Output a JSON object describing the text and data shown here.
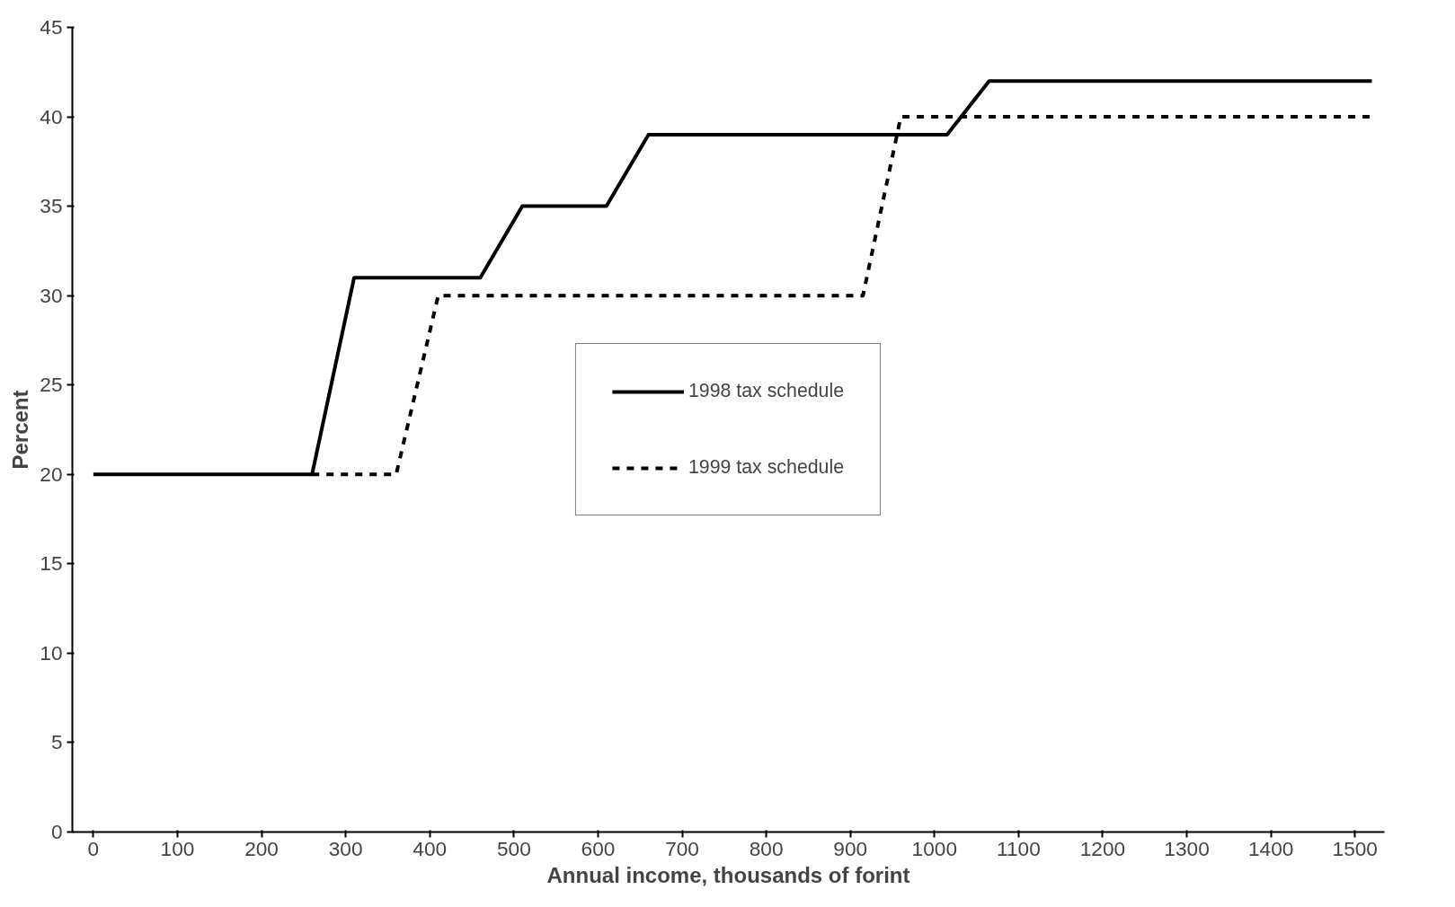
{
  "chart_data": {
    "type": "line",
    "xlabel": "Annual income, thousands of forint",
    "ylabel": "Percent",
    "xlim": [
      -25,
      1535
    ],
    "ylim": [
      0,
      45
    ],
    "xticks": [
      0,
      100,
      200,
      300,
      400,
      500,
      600,
      700,
      800,
      900,
      1000,
      1100,
      1200,
      1300,
      1400,
      1500
    ],
    "yticks": [
      0,
      5,
      10,
      15,
      20,
      25,
      30,
      35,
      40,
      45
    ],
    "grid": false,
    "legend": "center",
    "marker": "none",
    "series": [
      {
        "name": "1998 tax schedule",
        "color": "#000000",
        "line_style": "solid",
        "x": [
          0,
          260,
          310,
          460,
          510,
          610,
          660,
          1015,
          1065,
          1520
        ],
        "values": [
          20,
          20,
          31,
          31,
          35,
          35,
          39,
          39,
          42,
          42
        ]
      },
      {
        "name": "1999 tax schedule",
        "color": "#000000",
        "line_style": "dashed",
        "x": [
          260,
          360,
          410,
          915,
          960,
          1520
        ],
        "values": [
          20,
          20,
          30,
          30,
          40,
          40
        ]
      }
    ]
  }
}
